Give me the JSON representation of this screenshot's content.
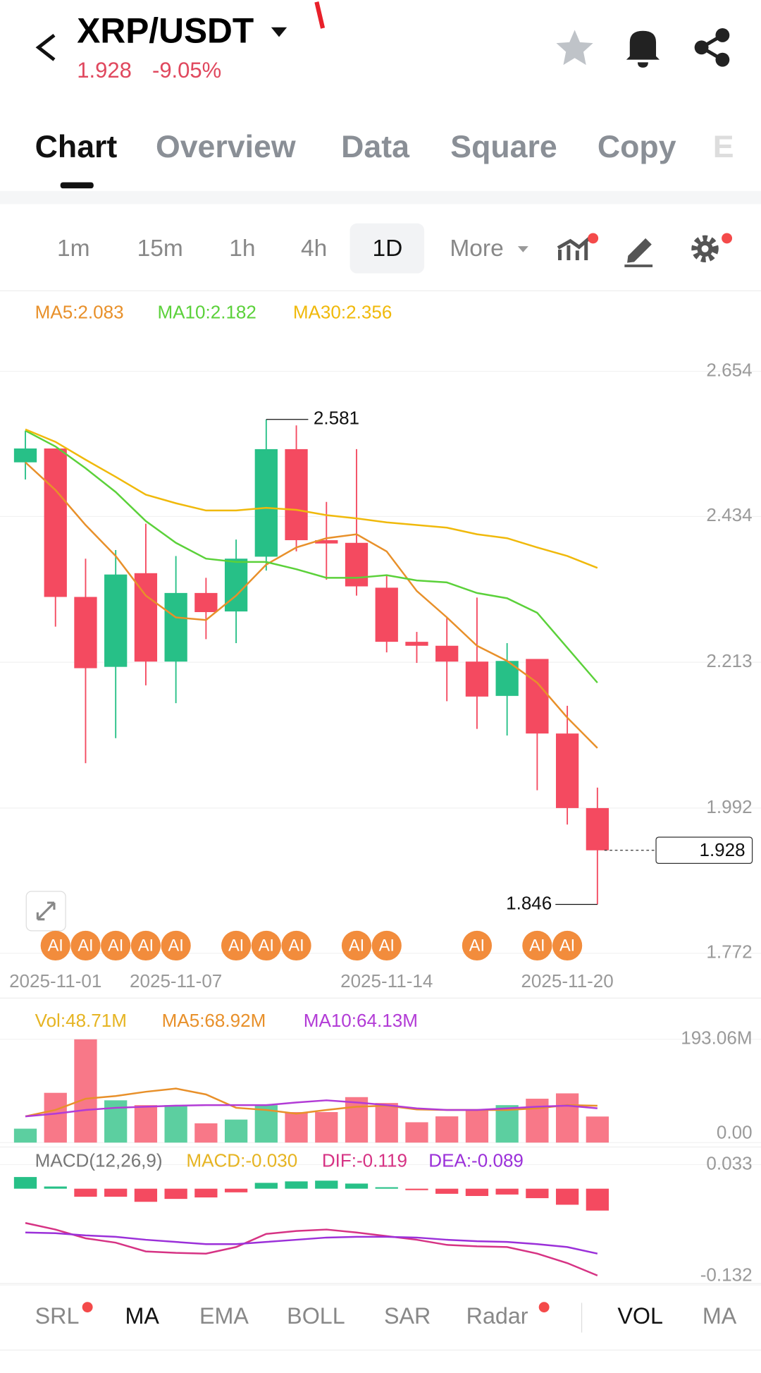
{
  "header": {
    "symbol": "XRP/USDT",
    "price": "1.928",
    "change": "-9.05%"
  },
  "tabs": [
    "Chart",
    "Overview",
    "Data",
    "Square",
    "Copy",
    "E"
  ],
  "intervals": [
    "1m",
    "15m",
    "1h",
    "4h",
    "1D",
    "More"
  ],
  "indicators": [
    "SRL",
    "MA",
    "EMA",
    "BOLL",
    "SAR",
    "Radar",
    "VOL",
    "MA"
  ],
  "chart_data": [
    {
      "type": "candlestick",
      "categories": [
        null,
        "2025-11-01",
        null,
        null,
        null,
        "2025-11-07",
        null,
        null,
        null,
        null,
        null,
        null,
        "2025-11-14",
        null,
        null,
        null,
        null,
        null,
        "2025-11-20",
        null
      ],
      "open": [
        2.516,
        2.537,
        2.312,
        2.206,
        2.348,
        2.214,
        2.318,
        2.29,
        2.373,
        2.536,
        2.398,
        2.394,
        2.326,
        2.244,
        2.238,
        2.214,
        2.162,
        2.218,
        2.105,
        1.992
      ],
      "high": [
        2.564,
        2.537,
        2.37,
        2.383,
        2.423,
        2.374,
        2.341,
        2.399,
        2.581,
        2.572,
        2.456,
        2.536,
        2.344,
        2.259,
        2.28,
        2.311,
        2.242,
        2.218,
        2.147,
        2.023
      ],
      "low": [
        2.49,
        2.267,
        2.06,
        2.098,
        2.178,
        2.151,
        2.248,
        2.242,
        2.352,
        2.381,
        2.338,
        2.314,
        2.228,
        2.212,
        2.154,
        2.112,
        2.102,
        2.019,
        1.967,
        1.846
      ],
      "close": [
        2.537,
        2.312,
        2.204,
        2.346,
        2.214,
        2.318,
        2.289,
        2.37,
        2.536,
        2.398,
        2.393,
        2.328,
        2.244,
        2.238,
        2.214,
        2.161,
        2.215,
        2.105,
        1.992,
        1.928
      ],
      "series": [
        {
          "name": "MA5:2.083",
          "color": "#e8902a",
          "values": [
            2.516,
            2.474,
            2.421,
            2.374,
            2.314,
            2.281,
            2.277,
            2.314,
            2.361,
            2.387,
            2.401,
            2.407,
            2.381,
            2.321,
            2.281,
            2.238,
            2.215,
            2.182,
            2.129,
            2.083
          ]
        },
        {
          "name": "MA10:2.182",
          "color": "#5bd13a",
          "values": [
            2.564,
            2.54,
            2.507,
            2.471,
            2.427,
            2.394,
            2.37,
            2.365,
            2.365,
            2.354,
            2.341,
            2.341,
            2.345,
            2.337,
            2.334,
            2.318,
            2.31,
            2.288,
            2.235,
            2.182
          ]
        },
        {
          "name": "MA30:2.356",
          "color": "#f0b90b",
          "values": [
            2.566,
            2.547,
            2.52,
            2.494,
            2.467,
            2.454,
            2.443,
            2.443,
            2.447,
            2.444,
            2.436,
            2.431,
            2.425,
            2.421,
            2.417,
            2.407,
            2.401,
            2.387,
            2.374,
            2.356
          ]
        }
      ],
      "signals": [
        null,
        "AI",
        "AI",
        "AI",
        "AI",
        "AI",
        null,
        "AI",
        "AI",
        "AI",
        null,
        "AI",
        "AI",
        null,
        null,
        "AI",
        null,
        "AI",
        "AI",
        null
      ],
      "up_color": "#27c087",
      "down_color": "#f44a60",
      "ylim": [
        1.757,
        2.699
      ],
      "yticks": [
        2.654,
        2.434,
        2.213,
        1.992,
        1.772
      ]
    },
    {
      "type": "bar",
      "series": [
        {
          "name": "Vol:48.71M",
          "color": "#e6b422",
          "values": [
            26,
            93,
            193,
            79,
            70,
            70,
            36,
            43,
            70,
            57,
            57,
            85,
            74,
            38,
            49,
            62,
            70,
            82,
            92,
            48.71
          ]
        },
        {
          "name": "MA5:68.92M",
          "color": "#e8902a",
          "values": [
            49,
            61,
            82,
            87,
            95,
            101,
            90,
            65,
            61,
            54,
            61,
            67,
            69,
            62,
            61,
            61,
            61,
            64,
            70,
            68.92
          ]
        },
        {
          "name": "MA10:64.13M",
          "color": "#b23bd6",
          "values": [
            49,
            54,
            61,
            65,
            67,
            69,
            70,
            70,
            70,
            75,
            79,
            75,
            70,
            64,
            61,
            61,
            64,
            67,
            69,
            64.13
          ]
        }
      ],
      "up_color": "#5ccfa0",
      "down_color": "#f87888",
      "ylim": [
        0,
        193.06
      ],
      "yticks": [
        {
          "value": 193.06,
          "label": "193.06M"
        },
        {
          "value": 0,
          "label": "0.00"
        }
      ]
    },
    {
      "type": "macd",
      "title": "MACD(12,26,9)",
      "series": [
        {
          "name": "MACD:-0.030",
          "color": "#e6b422",
          "values": [
            0.016,
            0.003,
            -0.011,
            -0.011,
            -0.018,
            -0.014,
            -0.012,
            -0.005,
            0.008,
            0.01,
            0.011,
            0.007,
            0.002,
            -0.002,
            -0.007,
            -0.01,
            -0.008,
            -0.013,
            -0.022,
            -0.03
          ]
        },
        {
          "name": "DIF:-0.119",
          "color": "#d63384",
          "values": [
            -0.047,
            -0.056,
            -0.068,
            -0.074,
            -0.086,
            -0.088,
            -0.089,
            -0.08,
            -0.062,
            -0.058,
            -0.056,
            -0.06,
            -0.065,
            -0.07,
            -0.077,
            -0.079,
            -0.08,
            -0.089,
            -0.102,
            -0.119
          ]
        },
        {
          "name": "DEA:-0.089",
          "color": "#9b30d9",
          "values": [
            -0.06,
            -0.061,
            -0.064,
            -0.066,
            -0.07,
            -0.073,
            -0.076,
            -0.076,
            -0.073,
            -0.07,
            -0.067,
            -0.066,
            -0.066,
            -0.067,
            -0.07,
            -0.072,
            -0.073,
            -0.076,
            -0.08,
            -0.089
          ]
        }
      ],
      "up_color": "#27c087",
      "down_color": "#f44a60",
      "ylim": [
        -0.13,
        0.05
      ],
      "yticks": [
        0.033,
        -0.132
      ]
    }
  ]
}
